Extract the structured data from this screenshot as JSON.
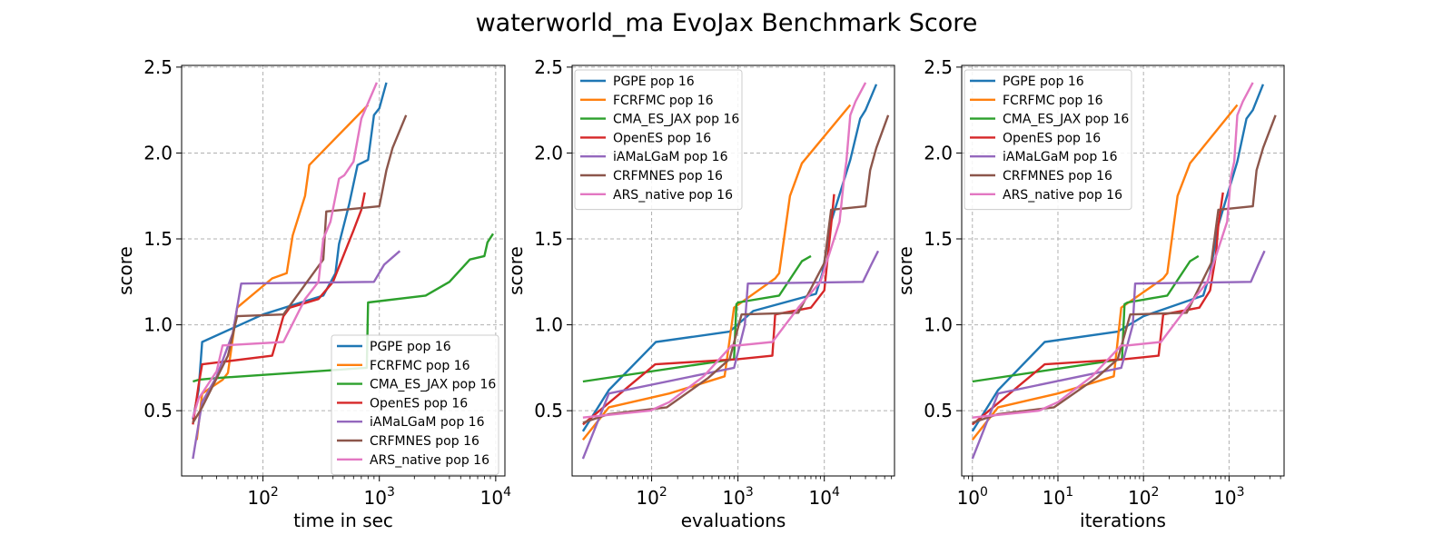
{
  "title": "waterworld_ma EvoJax Benchmark Score",
  "colors": {
    "PGPE pop 16": "#1f77b4",
    "FCRFMC pop 16": "#ff7f0e",
    "CMA_ES_JAX pop 16": "#2ca02c",
    "OpenES pop 16": "#d62728",
    "iAMaLGaM pop 16": "#9467bd",
    "CRFMNES pop 16": "#8c564b",
    "ARS_native pop 16": "#e377c2"
  },
  "chart_data": [
    {
      "type": "line",
      "xlabel": "time in sec",
      "ylabel": "score",
      "xscale": "log",
      "xlim": [
        20,
        12000
      ],
      "ylim": [
        0.12,
        2.51
      ],
      "xticks": [
        {
          "value": 100,
          "label": "10^2"
        },
        {
          "value": 1000,
          "label": "10^3"
        },
        {
          "value": 10000,
          "label": "10^4"
        }
      ],
      "yticks": [
        0.5,
        1.0,
        1.5,
        2.0,
        2.5
      ],
      "grid": true,
      "legend_position": "lower-right",
      "series": [
        {
          "name": "PGPE pop 16",
          "x": [
            25,
            28,
            30,
            100,
            330,
            420,
            450,
            550,
            650,
            800,
            900,
            1000,
            1150
          ],
          "y": [
            0.45,
            0.62,
            0.9,
            1.06,
            1.17,
            1.3,
            1.47,
            1.7,
            1.93,
            1.96,
            2.22,
            2.26,
            2.41
          ]
        },
        {
          "name": "FCRFMC pop 16",
          "x": [
            27,
            30,
            45,
            50,
            60,
            120,
            160,
            180,
            230,
            250,
            800
          ],
          "y": [
            0.33,
            0.6,
            0.68,
            0.72,
            1.1,
            1.27,
            1.3,
            1.52,
            1.75,
            1.93,
            2.28
          ]
        },
        {
          "name": "CMA_ES_JAX pop 16",
          "x": [
            25,
            28,
            40,
            780,
            800,
            2500,
            4000,
            6000,
            8000,
            8500,
            9500
          ],
          "y": [
            0.67,
            0.68,
            0.69,
            0.75,
            1.13,
            1.17,
            1.25,
            1.38,
            1.4,
            1.48,
            1.53
          ]
        },
        {
          "name": "OpenES pop 16",
          "x": [
            25,
            28,
            30,
            120,
            150,
            170,
            300,
            400,
            600,
            700,
            750
          ],
          "y": [
            0.42,
            0.65,
            0.77,
            0.82,
            1.05,
            1.1,
            1.15,
            1.25,
            1.55,
            1.67,
            1.77
          ]
        },
        {
          "name": "iAMaLGaM pop 16",
          "x": [
            25,
            30,
            40,
            55,
            65,
            900,
            1100,
            1500
          ],
          "y": [
            0.22,
            0.55,
            0.7,
            0.95,
            1.24,
            1.25,
            1.35,
            1.43
          ]
        },
        {
          "name": "CRFMNES pop 16",
          "x": [
            25,
            30,
            50,
            60,
            150,
            330,
            350,
            1000,
            1050,
            1150,
            1300,
            1700
          ],
          "y": [
            0.43,
            0.52,
            0.82,
            1.05,
            1.06,
            1.38,
            1.66,
            1.69,
            1.76,
            1.9,
            2.03,
            2.22
          ]
        },
        {
          "name": "ARS_native pop 16",
          "x": [
            25,
            28,
            40,
            45,
            150,
            230,
            300,
            330,
            380,
            450,
            500,
            600,
            700,
            950
          ],
          "y": [
            0.46,
            0.57,
            0.73,
            0.88,
            0.9,
            1.15,
            1.25,
            1.5,
            1.6,
            1.85,
            1.87,
            1.95,
            2.2,
            2.41
          ]
        }
      ]
    },
    {
      "type": "line",
      "xlabel": "evaluations",
      "ylabel": "score",
      "xscale": "log",
      "xlim": [
        12,
        65000
      ],
      "ylim": [
        0.12,
        2.51
      ],
      "xticks": [
        {
          "value": 100,
          "label": "10^2"
        },
        {
          "value": 1000,
          "label": "10^3"
        },
        {
          "value": 10000,
          "label": "10^4"
        }
      ],
      "yticks": [
        0.5,
        1.0,
        1.5,
        2.0,
        2.5
      ],
      "grid": true,
      "legend_position": "upper-left",
      "series": [
        {
          "name": "PGPE pop 16",
          "x": [
            16,
            32,
            112,
            800,
            1500,
            8000,
            9500,
            12000,
            20000,
            26000,
            30000,
            40000
          ],
          "y": [
            0.38,
            0.62,
            0.9,
            0.96,
            1.08,
            1.18,
            1.3,
            1.6,
            1.96,
            2.2,
            2.25,
            2.4
          ]
        },
        {
          "name": "FCRFMC pop 16",
          "x": [
            16,
            32,
            160,
            700,
            900,
            2700,
            3000,
            4000,
            5500,
            20000
          ],
          "y": [
            0.33,
            0.52,
            0.6,
            0.7,
            1.1,
            1.27,
            1.3,
            1.75,
            1.94,
            2.28
          ]
        },
        {
          "name": "CMA_ES_JAX pop 16",
          "x": [
            16,
            900,
            960,
            1000,
            3000,
            5500,
            7000
          ],
          "y": [
            0.67,
            0.8,
            1.12,
            1.13,
            1.17,
            1.37,
            1.4
          ]
        },
        {
          "name": "OpenES pop 16",
          "x": [
            16,
            110,
            1000,
            2500,
            2700,
            7000,
            10000,
            11000,
            12000,
            13000
          ],
          "y": [
            0.42,
            0.77,
            0.8,
            0.82,
            1.06,
            1.1,
            1.2,
            1.4,
            1.58,
            1.76
          ]
        },
        {
          "name": "iAMaLGaM pop 16",
          "x": [
            16,
            32,
            900,
            1200,
            1300,
            28000,
            35000,
            42000
          ],
          "y": [
            0.22,
            0.6,
            0.75,
            1.0,
            1.24,
            1.25,
            1.35,
            1.43
          ]
        },
        {
          "name": "CRFMNES pop 16",
          "x": [
            16,
            32,
            150,
            450,
            800,
            1100,
            5000,
            10000,
            12000,
            30000,
            34000,
            40000,
            55000
          ],
          "y": [
            0.43,
            0.48,
            0.52,
            0.69,
            0.8,
            1.06,
            1.07,
            1.36,
            1.67,
            1.69,
            1.9,
            2.03,
            2.22
          ]
        },
        {
          "name": "ARS_native pop 16",
          "x": [
            16,
            96,
            160,
            400,
            850,
            1000,
            2500,
            5000,
            9000,
            15000,
            17000,
            18000,
            20000,
            23000,
            30000
          ],
          "y": [
            0.46,
            0.5,
            0.55,
            0.7,
            0.88,
            0.88,
            0.9,
            1.1,
            1.25,
            1.6,
            1.86,
            1.95,
            2.22,
            2.3,
            2.41
          ]
        }
      ]
    },
    {
      "type": "line",
      "xlabel": "iterations",
      "ylabel": "score",
      "xscale": "log",
      "xlim": [
        0.75,
        4400
      ],
      "ylim": [
        0.12,
        2.51
      ],
      "xticks": [
        {
          "value": 1,
          "label": "10^0"
        },
        {
          "value": 10,
          "label": "10^1"
        },
        {
          "value": 100,
          "label": "10^2"
        },
        {
          "value": 1000,
          "label": "10^3"
        }
      ],
      "yticks": [
        0.5,
        1.0,
        1.5,
        2.0,
        2.5
      ],
      "grid": true,
      "legend_position": "upper-left",
      "series": [
        {
          "name": "PGPE pop 16",
          "x": [
            1,
            2,
            7,
            50,
            100,
            500,
            600,
            750,
            1250,
            1600,
            1900,
            2500
          ],
          "y": [
            0.38,
            0.62,
            0.9,
            0.96,
            1.05,
            1.17,
            1.3,
            1.58,
            1.95,
            2.2,
            2.25,
            2.4
          ]
        },
        {
          "name": "FCRFMC pop 16",
          "x": [
            1,
            2,
            10,
            45,
            55,
            170,
            190,
            250,
            350,
            1250
          ],
          "y": [
            0.33,
            0.52,
            0.6,
            0.7,
            1.1,
            1.27,
            1.3,
            1.75,
            1.94,
            2.28
          ]
        },
        {
          "name": "CMA_ES_JAX pop 16",
          "x": [
            1,
            56,
            60,
            65,
            190,
            350,
            440
          ],
          "y": [
            0.67,
            0.8,
            1.12,
            1.13,
            1.17,
            1.37,
            1.4
          ]
        },
        {
          "name": "OpenES pop 16",
          "x": [
            1,
            7,
            60,
            150,
            170,
            450,
            600,
            700,
            750,
            850
          ],
          "y": [
            0.42,
            0.77,
            0.8,
            0.82,
            1.06,
            1.1,
            1.2,
            1.4,
            1.58,
            1.77
          ]
        },
        {
          "name": "iAMaLGaM pop 16",
          "x": [
            1,
            2,
            55,
            75,
            80,
            1800,
            2200,
            2600
          ],
          "y": [
            0.22,
            0.6,
            0.75,
            1.0,
            1.24,
            1.25,
            1.35,
            1.43
          ]
        },
        {
          "name": "CRFMNES pop 16",
          "x": [
            1,
            2,
            9,
            28,
            50,
            70,
            320,
            620,
            750,
            1900,
            2100,
            2500,
            3500
          ],
          "y": [
            0.43,
            0.48,
            0.52,
            0.69,
            0.8,
            1.06,
            1.07,
            1.36,
            1.67,
            1.69,
            1.9,
            2.03,
            2.22
          ]
        },
        {
          "name": "ARS_native pop 16",
          "x": [
            1,
            6,
            10,
            25,
            55,
            65,
            160,
            320,
            560,
            950,
            1050,
            1150,
            1250,
            1450,
            1900
          ],
          "y": [
            0.46,
            0.5,
            0.55,
            0.7,
            0.88,
            0.88,
            0.9,
            1.1,
            1.25,
            1.6,
            1.86,
            1.95,
            2.22,
            2.3,
            2.41
          ]
        }
      ]
    }
  ]
}
